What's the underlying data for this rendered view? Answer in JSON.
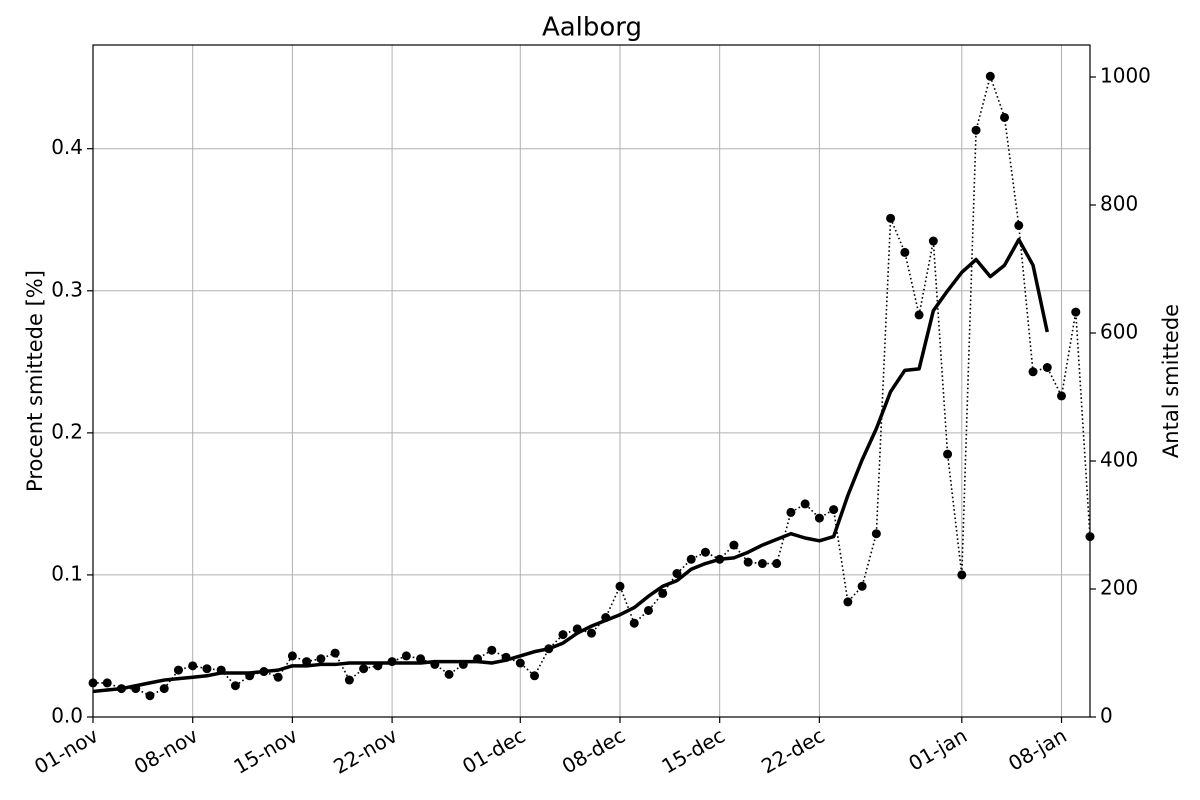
{
  "chart_data": {
    "type": "line",
    "title": "Aalborg",
    "ylabel": "Procent smittede [%]",
    "y2label": "Antal smittede",
    "x": [
      "01-nov",
      "02-nov",
      "03-nov",
      "04-nov",
      "05-nov",
      "06-nov",
      "07-nov",
      "08-nov",
      "09-nov",
      "10-nov",
      "11-nov",
      "12-nov",
      "13-nov",
      "14-nov",
      "15-nov",
      "16-nov",
      "17-nov",
      "18-nov",
      "19-nov",
      "20-nov",
      "21-nov",
      "22-nov",
      "23-nov",
      "24-nov",
      "25-nov",
      "26-nov",
      "27-nov",
      "28-nov",
      "29-nov",
      "30-nov",
      "01-dec",
      "02-dec",
      "03-dec",
      "04-dec",
      "05-dec",
      "06-dec",
      "07-dec",
      "08-dec",
      "09-dec",
      "10-dec",
      "11-dec",
      "12-dec",
      "13-dec",
      "14-dec",
      "15-dec",
      "16-dec",
      "17-dec",
      "18-dec",
      "19-dec",
      "20-dec",
      "21-dec",
      "22-dec",
      "23-dec",
      "24-dec",
      "25-dec",
      "26-dec",
      "27-dec",
      "28-dec",
      "29-dec",
      "30-dec",
      "31-dec",
      "01-jan",
      "02-jan",
      "03-jan",
      "04-jan",
      "05-jan",
      "06-jan",
      "07-jan",
      "08-jan",
      "09-jan",
      "10-jan"
    ],
    "series": [
      {
        "color": "#000000",
        "linestyle": "dotted",
        "marker": true,
        "values": [
          0.024,
          0.024,
          0.02,
          0.02,
          0.015,
          0.02,
          0.033,
          0.036,
          0.034,
          0.033,
          0.022,
          0.029,
          0.032,
          0.028,
          0.043,
          0.039,
          0.041,
          0.045,
          0.026,
          0.034,
          0.036,
          0.039,
          0.043,
          0.041,
          0.037,
          0.03,
          0.037,
          0.041,
          0.047,
          0.042,
          0.038,
          0.029,
          0.048,
          0.058,
          0.062,
          0.059,
          0.07,
          0.092,
          0.066,
          0.075,
          0.087,
          0.101,
          0.111,
          0.116,
          0.111,
          0.121,
          0.109,
          0.108,
          0.108,
          0.144,
          0.15,
          0.14,
          0.146,
          0.081,
          0.092,
          0.129,
          0.351,
          0.327,
          0.283,
          0.335,
          0.185,
          0.1,
          0.413,
          0.451,
          0.422,
          0.346,
          0.243,
          0.246,
          0.226,
          0.285,
          0.127
        ]
      },
      {
        "color": "#000000",
        "linestyle": "solid",
        "marker": false,
        "values": [
          0.018,
          0.019,
          0.02,
          0.022,
          0.024,
          0.026,
          0.027,
          0.028,
          0.029,
          0.031,
          0.031,
          0.031,
          0.032,
          0.033,
          0.036,
          0.036,
          0.037,
          0.037,
          0.038,
          0.038,
          0.038,
          0.038,
          0.038,
          0.038,
          0.039,
          0.039,
          0.039,
          0.039,
          0.038,
          0.04,
          0.043,
          0.046,
          0.048,
          0.052,
          0.059,
          0.064,
          0.068,
          0.072,
          0.077,
          0.085,
          0.092,
          0.096,
          0.104,
          0.108,
          0.111,
          0.112,
          0.116,
          0.121,
          0.125,
          0.129,
          0.126,
          0.124,
          0.127,
          0.156,
          0.181,
          0.203,
          0.229,
          0.244,
          0.245,
          0.286,
          0.3,
          0.313,
          0.322,
          0.31,
          0.318,
          0.336,
          0.318,
          0.271,
          null,
          null,
          null
        ]
      }
    ],
    "xlim": [
      "01-nov",
      "10-jan"
    ],
    "xticks": [
      "01-nov",
      "08-nov",
      "15-nov",
      "22-nov",
      "01-dec",
      "08-dec",
      "15-dec",
      "22-dec",
      "01-jan",
      "08-jan"
    ],
    "ylim": [
      0,
      0.473
    ],
    "yticks": [
      {
        "value": 0,
        "label": "0.0"
      },
      0.1,
      0.2,
      0.3,
      0.4
    ],
    "y2lim": [
      0,
      1050
    ],
    "y2ticks": [
      0,
      200,
      400,
      600,
      800,
      1000
    ],
    "grid": true
  }
}
